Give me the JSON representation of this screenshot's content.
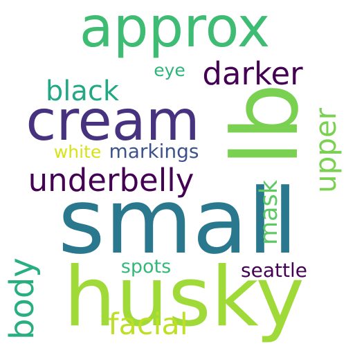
{
  "words": [
    {
      "text": "approx",
      "color": "#3fbc73",
      "orientation": "horizontal"
    },
    {
      "text": "lb",
      "color": "#7ad151",
      "orientation": "vertical"
    },
    {
      "text": "cream",
      "color": "#46327e",
      "orientation": "horizontal"
    },
    {
      "text": "small",
      "color": "#2a788e",
      "orientation": "horizontal"
    },
    {
      "text": "husky",
      "color": "#a0da39",
      "orientation": "horizontal"
    },
    {
      "text": "underbelly",
      "color": "#440154",
      "orientation": "horizontal"
    },
    {
      "text": "darker",
      "color": "#440154",
      "orientation": "horizontal"
    },
    {
      "text": "upper",
      "color": "#7ad151",
      "orientation": "vertical"
    },
    {
      "text": "black",
      "color": "#22a884",
      "orientation": "horizontal"
    },
    {
      "text": "eye",
      "color": "#2fb47c",
      "orientation": "horizontal"
    },
    {
      "text": "markings",
      "color": "#3b528b",
      "orientation": "horizontal"
    },
    {
      "text": "white",
      "color": "#d8e219",
      "orientation": "horizontal"
    },
    {
      "text": "mask",
      "color": "#5ec962",
      "orientation": "vertical"
    },
    {
      "text": "body",
      "color": "#29af7f",
      "orientation": "vertical"
    },
    {
      "text": "spots",
      "color": "#35b779",
      "orientation": "horizontal"
    },
    {
      "text": "seattle",
      "color": "#440154",
      "orientation": "horizontal"
    },
    {
      "text": "facial",
      "color": "#bddf26",
      "orientation": "horizontal"
    }
  ]
}
